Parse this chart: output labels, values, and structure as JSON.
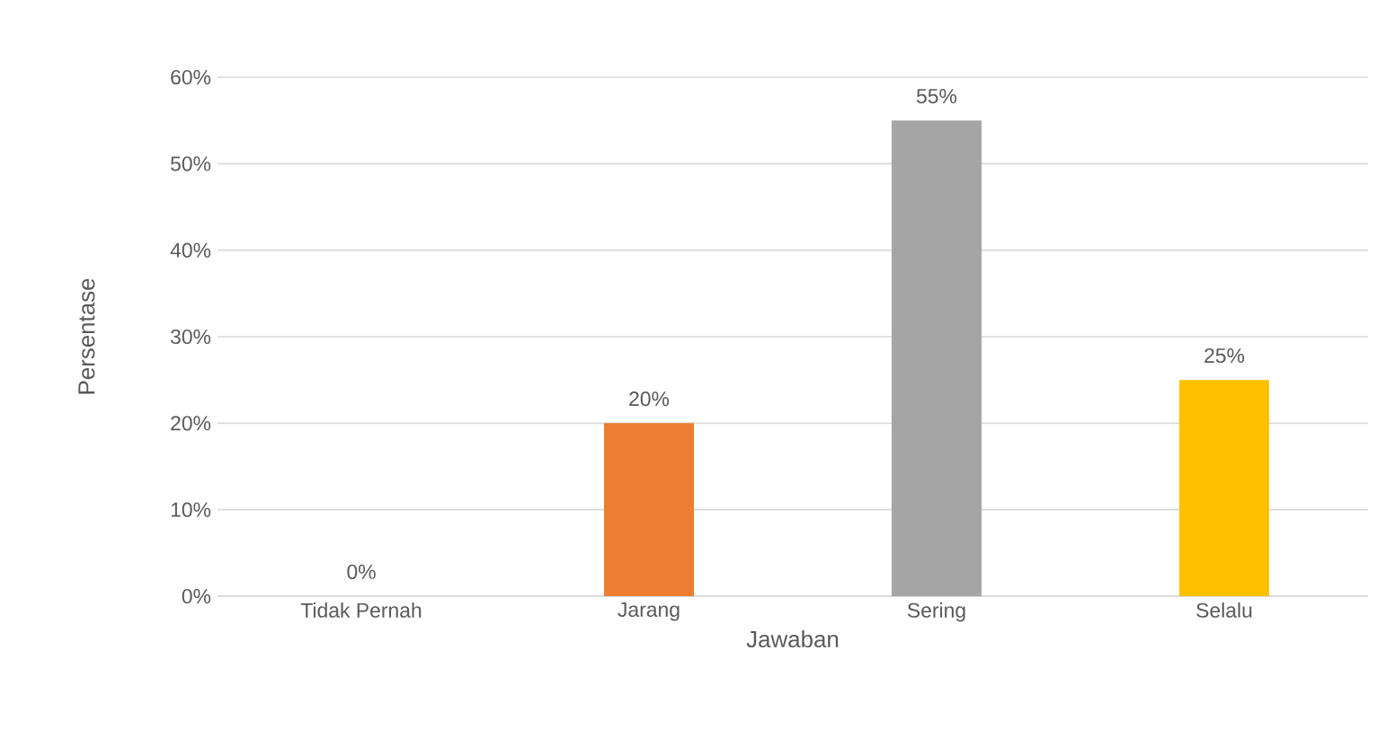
{
  "chart_data": {
    "type": "bar",
    "xlabel": "Jawaban",
    "ylabel": "Persentase",
    "categories": [
      "Tidak Pernah",
      "Jarang",
      "Sering",
      "Selalu"
    ],
    "values": [
      0,
      20,
      55,
      25
    ],
    "colors": [
      "#4472c4",
      "#ed7d31",
      "#a5a5a5",
      "#ffc000"
    ],
    "value_labels": [
      "0%",
      "20%",
      "55%",
      "25%"
    ],
    "ylim": [
      0,
      60
    ],
    "yticks": [
      {
        "value": 0,
        "label": "0%"
      },
      {
        "value": 10,
        "label": "10%"
      },
      {
        "value": 20,
        "label": "20%"
      },
      {
        "value": 30,
        "label": "30%"
      },
      {
        "value": 40,
        "label": "40%"
      },
      {
        "value": 50,
        "label": "50%"
      },
      {
        "value": 60,
        "label": "60%"
      }
    ],
    "grid": "y"
  }
}
